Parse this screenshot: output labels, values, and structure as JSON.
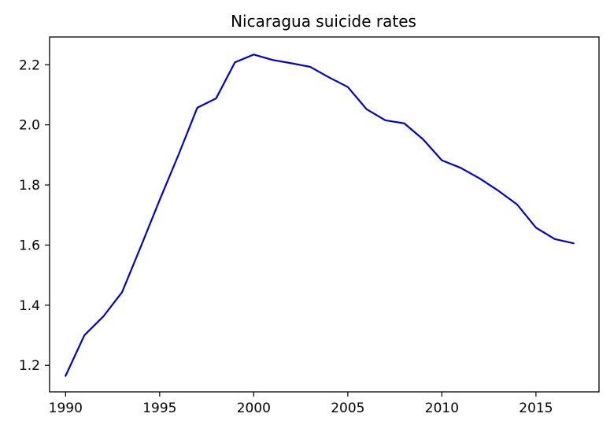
{
  "chart_data": {
    "type": "line",
    "title": "Nicaragua suicide rates",
    "xlabel": "",
    "ylabel": "",
    "x": [
      1990,
      1991,
      1992,
      1993,
      1994,
      1995,
      1996,
      1997,
      1998,
      1999,
      2000,
      2001,
      2002,
      2003,
      2004,
      2005,
      2006,
      2007,
      2008,
      2009,
      2010,
      2011,
      2012,
      2013,
      2014,
      2015,
      2016,
      2017
    ],
    "series": [
      {
        "values": [
          1.165,
          1.3,
          1.362,
          1.443,
          1.595,
          1.75,
          1.9,
          2.057,
          2.088,
          2.208,
          2.234,
          2.216,
          2.205,
          2.193,
          2.158,
          2.126,
          2.052,
          2.015,
          2.005,
          1.952,
          1.882,
          1.857,
          1.822,
          1.781,
          1.735,
          1.658,
          1.62,
          1.606
        ],
        "color": "#0000d6"
      }
    ],
    "xlim": [
      1989.15,
      2018.35
    ],
    "ylim": [
      1.1116,
      2.2924
    ],
    "xticks": [
      1990,
      1995,
      2000,
      2005,
      2010,
      2015
    ],
    "yticks": [
      1.2,
      1.4,
      1.6,
      1.8,
      2.0,
      2.2
    ],
    "ytick_labels": [
      "1.2",
      "1.4",
      "1.6",
      "1.8",
      "2.0",
      "2.2"
    ],
    "grid": false,
    "legend": "none"
  }
}
